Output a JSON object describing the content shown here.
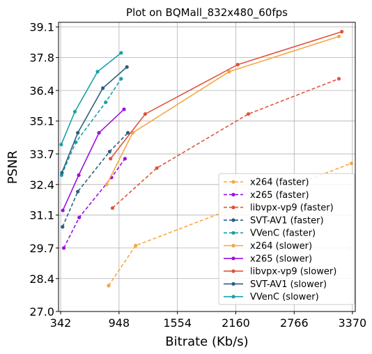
{
  "chart_data": {
    "type": "line",
    "title": "Plot on BQMall_832x480_60fps",
    "xlabel": "Bitrate (Kb/s)",
    "ylabel": "PSNR",
    "xlim": [
      320,
      3400
    ],
    "ylim": [
      27.0,
      39.3
    ],
    "xticks": [
      342,
      948,
      1554,
      2160,
      2766,
      3370
    ],
    "yticks": [
      27.0,
      28.4,
      29.7,
      31.1,
      32.4,
      33.7,
      35.1,
      36.4,
      37.8,
      39.1
    ],
    "grid": true,
    "legend_position": "lower-right",
    "series": [
      {
        "name": "x264 (faster)",
        "color": "#f5a742",
        "dashed": true,
        "x": [
          840,
          1120,
          3360
        ],
        "y": [
          28.1,
          29.8,
          33.3
        ]
      },
      {
        "name": "x265 (faster)",
        "color": "#9b0fe0",
        "dashed": true,
        "x": [
          375,
          535,
          870,
          1010
        ],
        "y": [
          29.7,
          31.0,
          32.7,
          33.5
        ]
      },
      {
        "name": "libvpx-vp9 (faster)",
        "color": "#e0533b",
        "dashed": true,
        "x": [
          880,
          1340,
          2290,
          3230
        ],
        "y": [
          31.4,
          33.1,
          35.4,
          36.9
        ]
      },
      {
        "name": "SVT-AV1 (faster)",
        "color": "#2c5f7f",
        "dashed": true,
        "x": [
          362,
          520,
          850,
          1040
        ],
        "y": [
          30.6,
          32.1,
          33.8,
          34.6
        ]
      },
      {
        "name": "VVenC (faster)",
        "color": "#17a2a6",
        "dashed": true,
        "x": [
          352,
          500,
          810,
          970
        ],
        "y": [
          32.8,
          34.2,
          35.9,
          36.9
        ]
      },
      {
        "name": "x264 (slower)",
        "color": "#f5a742",
        "dashed": false,
        "x": [
          820,
          1090,
          2090,
          3230
        ],
        "y": [
          32.4,
          34.6,
          37.2,
          38.7
        ]
      },
      {
        "name": "x265 (slower)",
        "color": "#9b0fe0",
        "dashed": false,
        "x": [
          365,
          530,
          740,
          1000
        ],
        "y": [
          31.3,
          32.8,
          34.6,
          35.6
        ]
      },
      {
        "name": "libvpx-vp9 (slower)",
        "color": "#e0533b",
        "dashed": false,
        "x": [
          860,
          1220,
          2180,
          3260
        ],
        "y": [
          33.5,
          35.4,
          37.5,
          38.9
        ]
      },
      {
        "name": "SVT-AV1 (slower)",
        "color": "#2c5f7f",
        "dashed": false,
        "x": [
          355,
          520,
          780,
          1030
        ],
        "y": [
          32.9,
          34.6,
          36.5,
          37.4
        ]
      },
      {
        "name": "VVenC (slower)",
        "color": "#17a2a6",
        "dashed": false,
        "x": [
          348,
          490,
          725,
          970
        ],
        "y": [
          34.1,
          35.5,
          37.2,
          38.0
        ]
      }
    ]
  }
}
